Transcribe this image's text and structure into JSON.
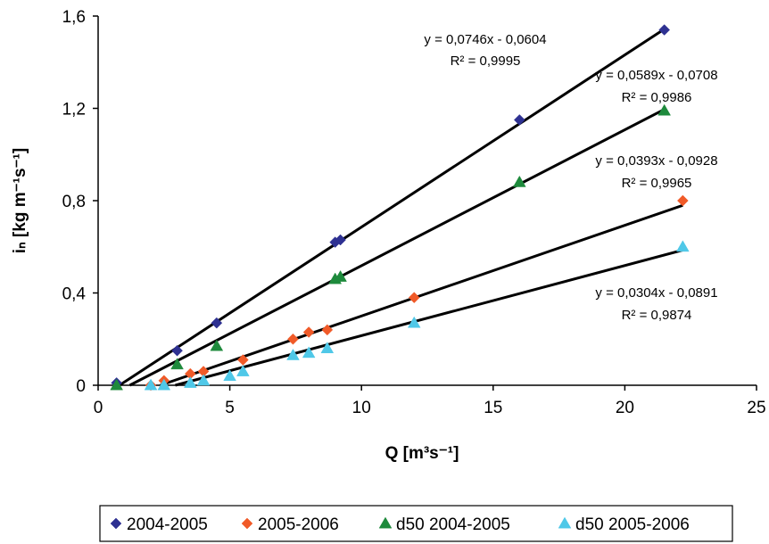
{
  "chart_data": {
    "type": "scatter",
    "title": "",
    "xlabel": "Q [m³s⁻¹]",
    "ylabel": "iₙ [kg m⁻¹s⁻¹]",
    "xlim": [
      0,
      25
    ],
    "ylim": [
      0,
      1.6
    ],
    "x_ticks": [
      "0",
      "5",
      "10",
      "15",
      "20",
      "25"
    ],
    "y_ticks": [
      "0",
      "0,4",
      "0,8",
      "1,2",
      "1,6"
    ],
    "grid": false,
    "legend_position": "bottom",
    "series": [
      {
        "name": "2004-2005",
        "marker": "diamond",
        "color": "#2e3192",
        "x": [
          0.7,
          3.0,
          4.5,
          9.0,
          9.2,
          16.0,
          21.5
        ],
        "y": [
          0.01,
          0.15,
          0.27,
          0.62,
          0.63,
          1.15,
          1.54
        ],
        "trendline": {
          "slope": 0.0746,
          "intercept": -0.0604,
          "equation": "y = 0,0746x - 0,0604",
          "r2": "R² = 0,9995"
        }
      },
      {
        "name": "2005-2006",
        "marker": "diamond",
        "color": "#f05a28",
        "x": [
          2.0,
          2.5,
          3.5,
          4.0,
          5.5,
          7.4,
          8.0,
          8.7,
          12.0,
          22.2
        ],
        "y": [
          0.0,
          0.02,
          0.05,
          0.06,
          0.11,
          0.2,
          0.23,
          0.24,
          0.38,
          0.8
        ],
        "trendline": {
          "slope": 0.0393,
          "intercept": -0.0928,
          "equation": "y = 0,0393x - 0,0928",
          "r2": "R² = 0,9965"
        }
      },
      {
        "name": "d50 2004-2005",
        "marker": "triangle",
        "color": "#1e8a3c",
        "x": [
          0.7,
          3.0,
          4.5,
          9.0,
          9.2,
          16.0,
          21.5
        ],
        "y": [
          0.0,
          0.09,
          0.17,
          0.46,
          0.47,
          0.88,
          1.19
        ],
        "trendline": {
          "slope": 0.0589,
          "intercept": -0.0708,
          "equation": "y = 0,0589x - 0,0708",
          "r2": "R² = 0,9986"
        }
      },
      {
        "name": "d50 2005-2006",
        "marker": "triangle",
        "color": "#4fc8e8",
        "x": [
          2.0,
          2.5,
          3.5,
          4.0,
          5.0,
          5.5,
          7.4,
          8.0,
          8.7,
          12.0,
          22.2
        ],
        "y": [
          0.0,
          0.0,
          0.01,
          0.02,
          0.04,
          0.06,
          0.13,
          0.14,
          0.16,
          0.27,
          0.6
        ],
        "trendline": {
          "slope": 0.0304,
          "intercept": -0.0891,
          "equation": "y = 0,0304x - 0,0891",
          "r2": "R² = 0,9874"
        }
      }
    ]
  }
}
